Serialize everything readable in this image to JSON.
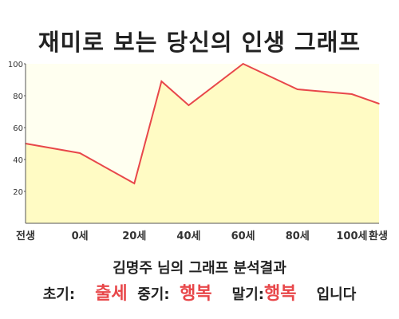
{
  "title": "재미로 보는 당신의 인생 그래프",
  "chart_data": {
    "type": "area",
    "x": [
      0,
      1,
      2,
      2.5,
      3,
      4,
      4.5,
      5,
      6,
      6.5
    ],
    "values": [
      50,
      44,
      25,
      89,
      74,
      100,
      92,
      84,
      81,
      75
    ],
    "xticks": [
      {
        "x": 0,
        "label": "전생"
      },
      {
        "x": 1,
        "label": "0세"
      },
      {
        "x": 2,
        "label": "20세"
      },
      {
        "x": 3,
        "label": "40세"
      },
      {
        "x": 4,
        "label": "60세"
      },
      {
        "x": 5,
        "label": "80세"
      },
      {
        "x": 6,
        "label": "100세"
      },
      {
        "x": 6.5,
        "label": "환생"
      }
    ],
    "yticks": [
      20,
      40,
      60,
      80,
      100
    ],
    "ylim": [
      0,
      100
    ],
    "grid": false,
    "line_color": "#e8474a",
    "fill_color": "#fffbc4"
  },
  "result": {
    "name_line": "김명주 님의 그래프 분석결과",
    "early_label": "초기:",
    "early_value": "출세",
    "mid_label": "중기:",
    "mid_value": "행복",
    "late_label": "말기:",
    "late_value": "행복",
    "ending": "입니다"
  }
}
